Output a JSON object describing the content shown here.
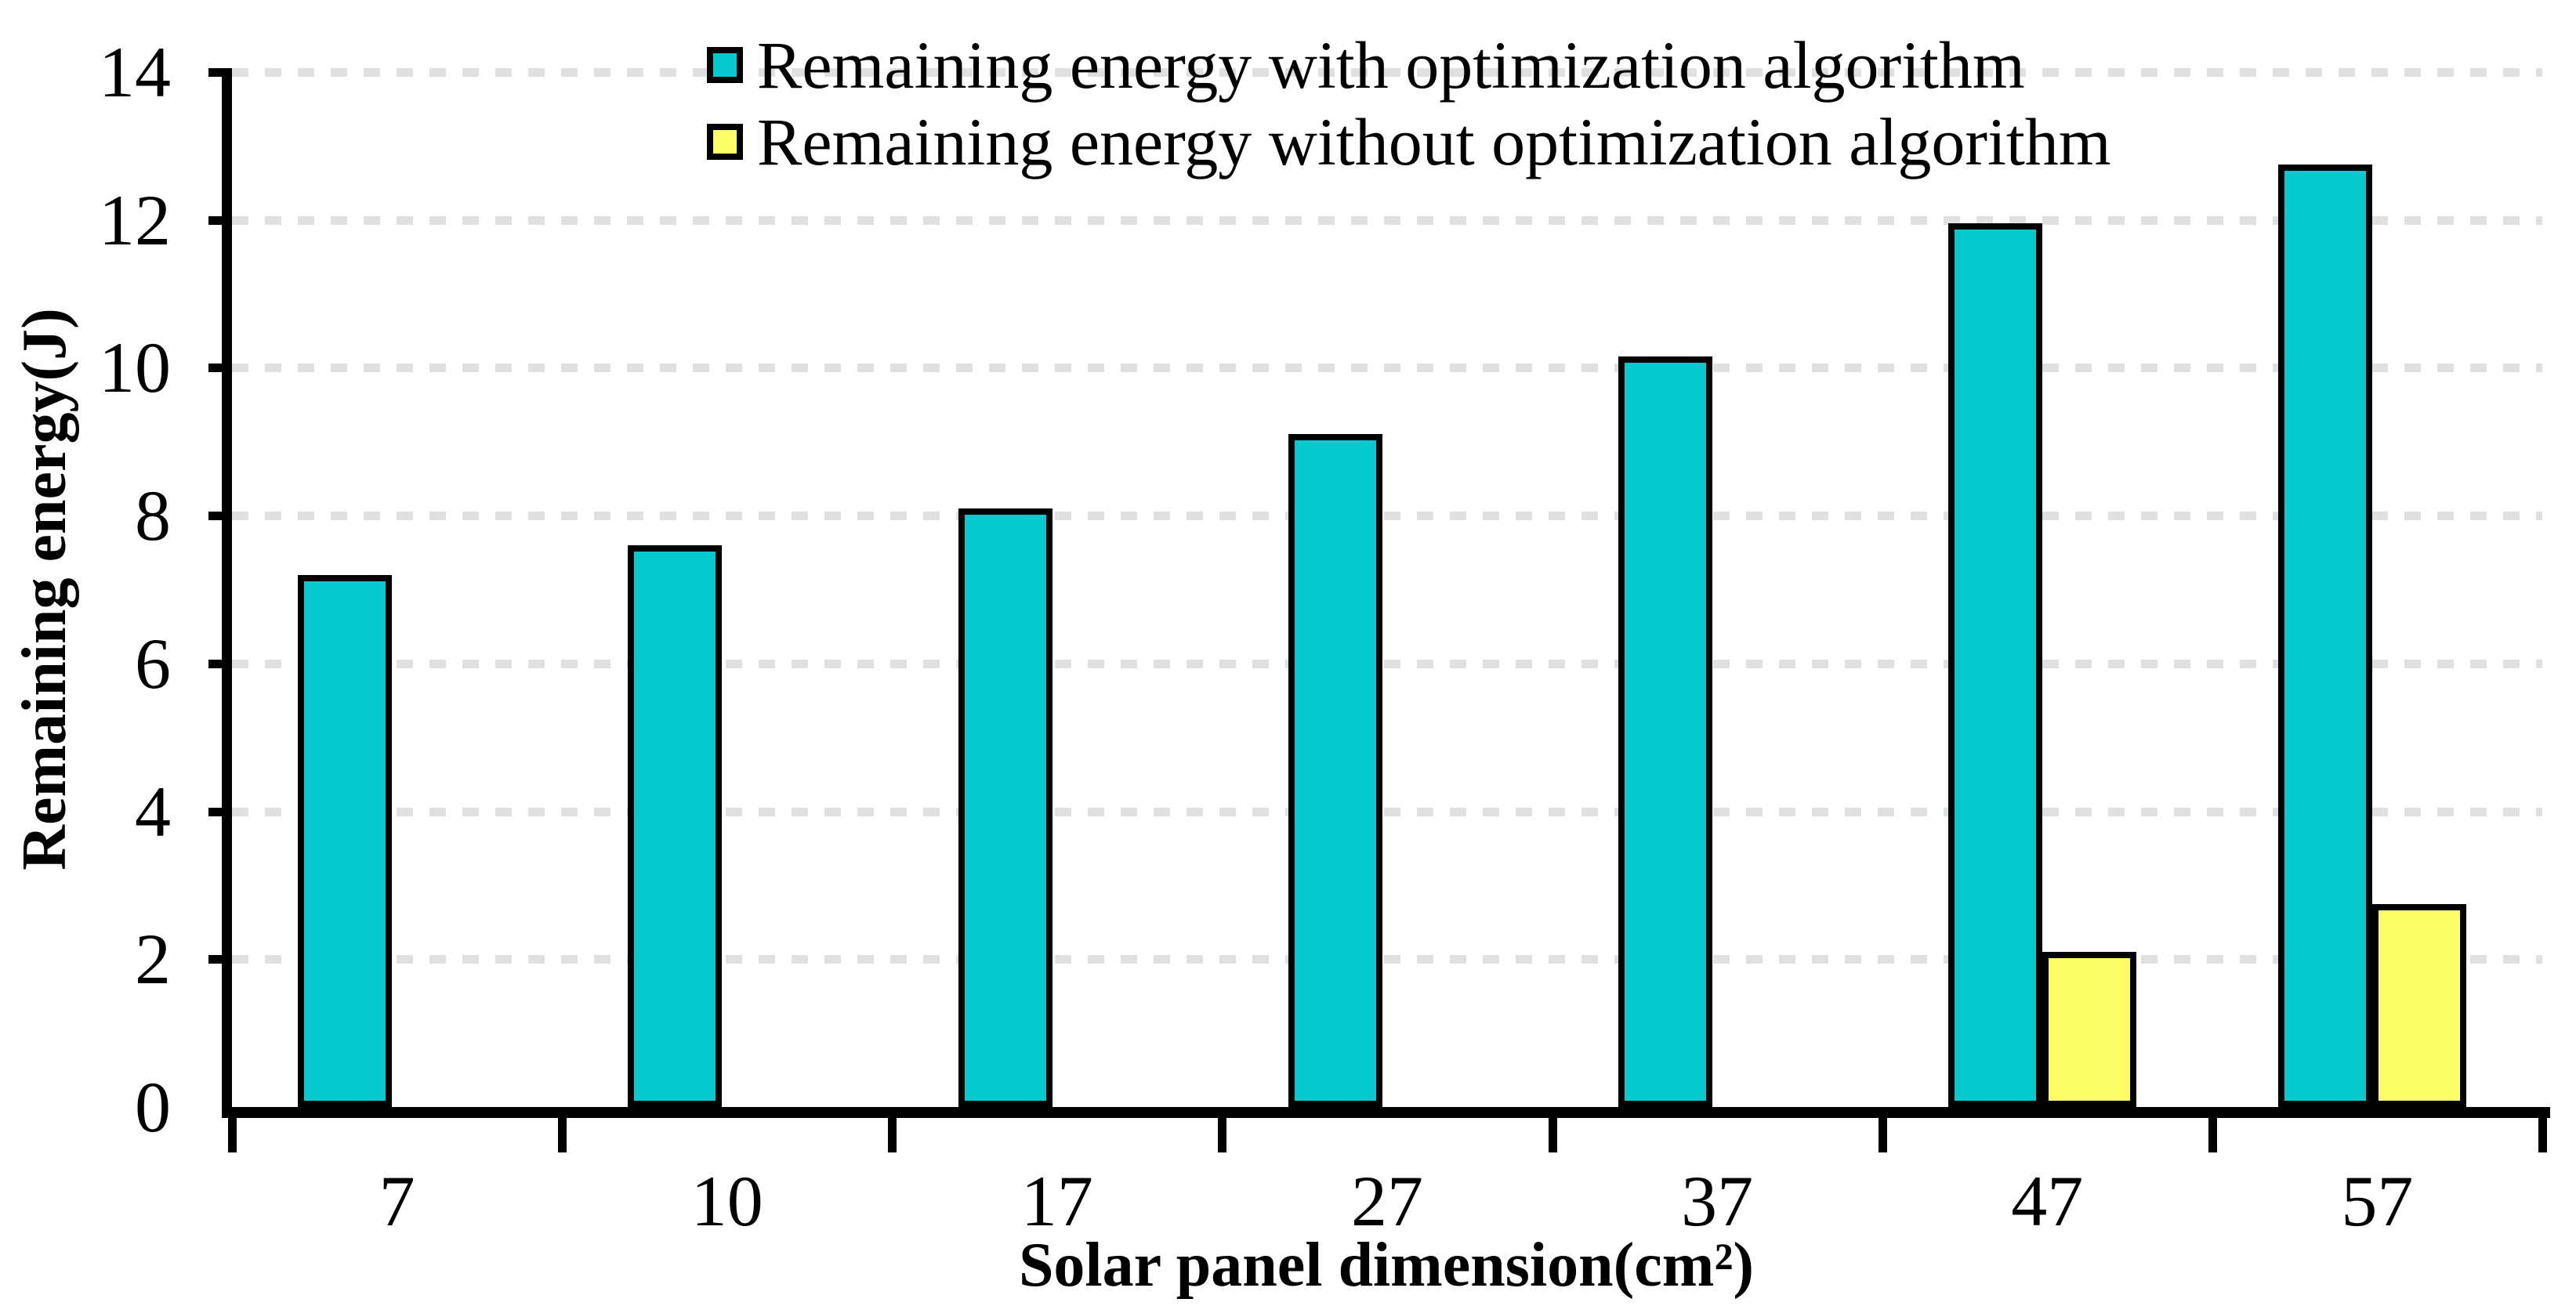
{
  "chart_data": {
    "type": "bar",
    "title": "",
    "xlabel": "Solar panel dimension(cm²)",
    "ylabel": "Remaining energy(J)",
    "categories": [
      "7",
      "10",
      "17",
      "27",
      "37",
      "47",
      "57"
    ],
    "series": [
      {
        "name": "Remaining energy with optimization algorithm",
        "color": "#04c9cd",
        "values": [
          7.2,
          7.6,
          8.1,
          9.1,
          10.15,
          11.95,
          12.75
        ]
      },
      {
        "name": "Remaining energy without optimization algorithm",
        "color": "#fefe66",
        "values": [
          0,
          0,
          0,
          0,
          0,
          2.1,
          2.75
        ]
      }
    ],
    "ylim": [
      0,
      14
    ],
    "yticks": [
      0,
      2,
      4,
      6,
      8,
      10,
      12,
      14
    ],
    "grid": "horizontal-dashed",
    "gridline_color": "#e0e0e0",
    "bar_border_color": "#000000",
    "legend_position": "top-center"
  }
}
